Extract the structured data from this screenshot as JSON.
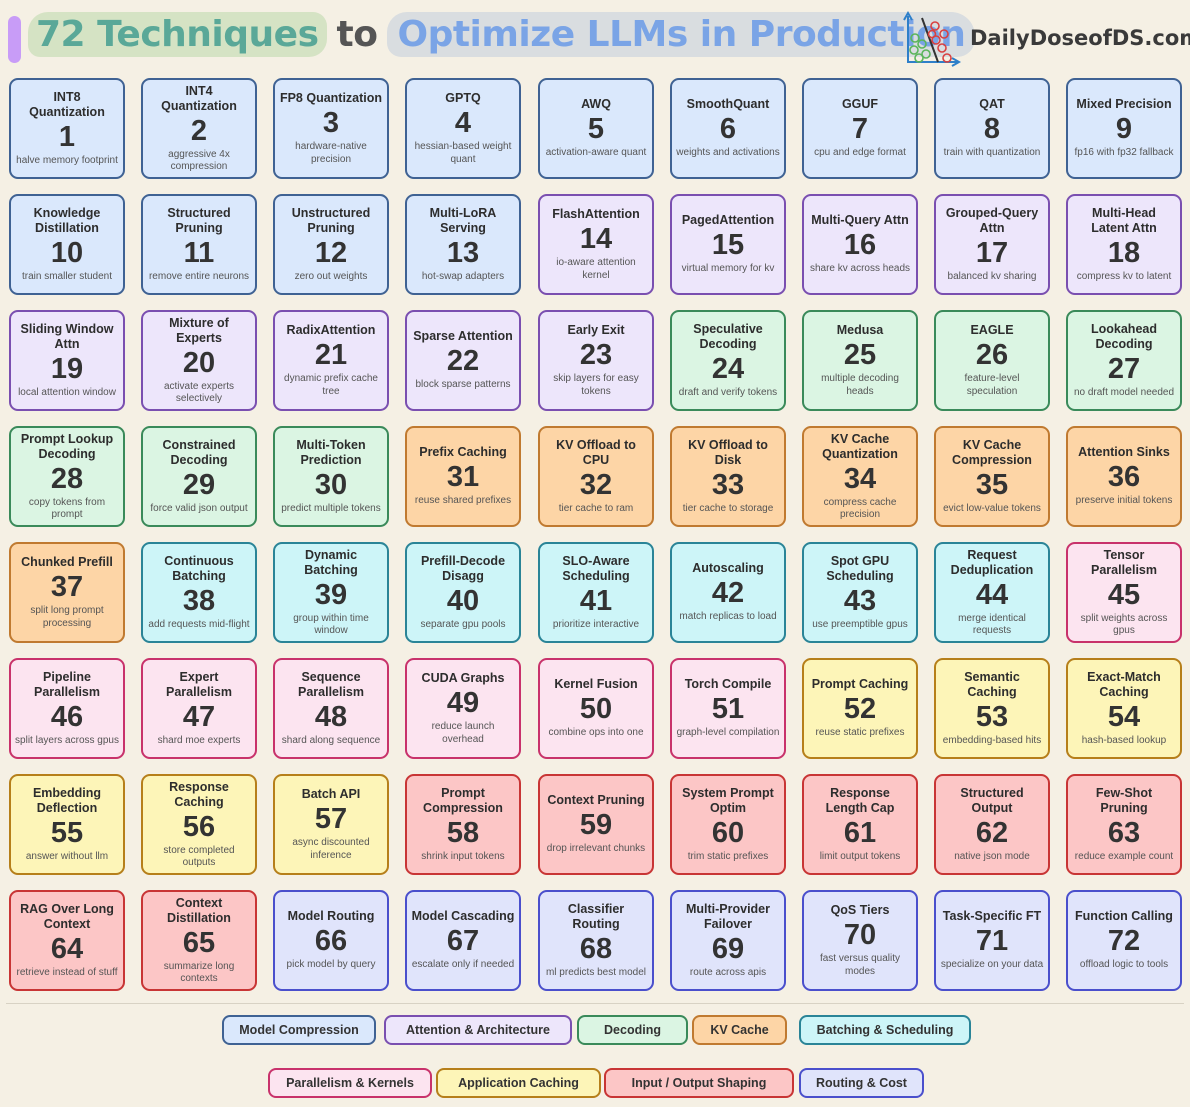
{
  "header": {
    "title_part1": "72 Techniques",
    "title_part2": "to",
    "title_part3": "Optimize LLMs in Production",
    "brand": "DailyDoseofDS.com"
  },
  "categories": {
    "compression": {
      "label": "Model Compression",
      "bg": "#dae8fc",
      "border": "#3f6293"
    },
    "attention": {
      "label": "Attention & Architecture",
      "bg": "#ede6fb",
      "border": "#7a4fb0"
    },
    "decoding": {
      "label": "Decoding",
      "bg": "#dbf5e3",
      "border": "#3a8a5a"
    },
    "kv": {
      "label": "KV Cache",
      "bg": "#fdd5a6",
      "border": "#c07a30"
    },
    "batching": {
      "label": "Batching & Scheduling",
      "bg": "#cdf5f8",
      "border": "#2a8497"
    },
    "parallel": {
      "label": "Parallelism & Kernels",
      "bg": "#fce4f0",
      "border": "#c8326b"
    },
    "appcache": {
      "label": "Application Caching",
      "bg": "#fdf5b8",
      "border": "#b67f1a"
    },
    "io": {
      "label": "Input / Output Shaping",
      "bg": "#fcc6c6",
      "border": "#c83535"
    },
    "routing": {
      "label": "Routing & Cost",
      "bg": "#e0e4fb",
      "border": "#4a4fcc"
    }
  },
  "legend_order": [
    "compression",
    "attention",
    "decoding",
    "kv",
    "batching",
    "parallel",
    "appcache",
    "io",
    "routing"
  ],
  "techniques": [
    {
      "n": "1",
      "title": "INT8 Quantization",
      "desc": "halve memory footprint",
      "cat": "compression"
    },
    {
      "n": "2",
      "title": "INT4 Quantization",
      "desc": "aggressive 4x compression",
      "cat": "compression"
    },
    {
      "n": "3",
      "title": "FP8 Quantization",
      "desc": "hardware-native precision",
      "cat": "compression"
    },
    {
      "n": "4",
      "title": "GPTQ",
      "desc": "hessian-based weight quant",
      "cat": "compression"
    },
    {
      "n": "5",
      "title": "AWQ",
      "desc": "activation-aware quant",
      "cat": "compression"
    },
    {
      "n": "6",
      "title": "SmoothQuant",
      "desc": "weights and activations",
      "cat": "compression"
    },
    {
      "n": "7",
      "title": "GGUF",
      "desc": "cpu and edge format",
      "cat": "compression"
    },
    {
      "n": "8",
      "title": "QAT",
      "desc": "train with quantization",
      "cat": "compression"
    },
    {
      "n": "9",
      "title": "Mixed Precision",
      "desc": "fp16 with fp32 fallback",
      "cat": "compression"
    },
    {
      "n": "10",
      "title": "Knowledge Distillation",
      "desc": "train smaller student",
      "cat": "compression"
    },
    {
      "n": "11",
      "title": "Structured Pruning",
      "desc": "remove entire neurons",
      "cat": "compression"
    },
    {
      "n": "12",
      "title": "Unstructured Pruning",
      "desc": "zero out weights",
      "cat": "compression"
    },
    {
      "n": "13",
      "title": "Multi-LoRA Serving",
      "desc": "hot-swap adapters",
      "cat": "compression"
    },
    {
      "n": "14",
      "title": "FlashAttention",
      "desc": "io-aware attention kernel",
      "cat": "attention"
    },
    {
      "n": "15",
      "title": "PagedAttention",
      "desc": "virtual memory for kv",
      "cat": "attention"
    },
    {
      "n": "16",
      "title": "Multi-Query Attn",
      "desc": "share kv across heads",
      "cat": "attention"
    },
    {
      "n": "17",
      "title": "Grouped-Query Attn",
      "desc": "balanced kv sharing",
      "cat": "attention"
    },
    {
      "n": "18",
      "title": "Multi-Head Latent Attn",
      "desc": "compress kv to latent",
      "cat": "attention"
    },
    {
      "n": "19",
      "title": "Sliding Window Attn",
      "desc": "local attention window",
      "cat": "attention"
    },
    {
      "n": "20",
      "title": "Mixture of Experts",
      "desc": "activate experts selectively",
      "cat": "attention"
    },
    {
      "n": "21",
      "title": "RadixAttention",
      "desc": "dynamic prefix cache tree",
      "cat": "attention"
    },
    {
      "n": "22",
      "title": "Sparse Attention",
      "desc": "block sparse patterns",
      "cat": "attention"
    },
    {
      "n": "23",
      "title": "Early Exit",
      "desc": "skip layers for easy tokens",
      "cat": "attention"
    },
    {
      "n": "24",
      "title": "Speculative Decoding",
      "desc": "draft and verify tokens",
      "cat": "decoding"
    },
    {
      "n": "25",
      "title": "Medusa",
      "desc": "multiple decoding heads",
      "cat": "decoding"
    },
    {
      "n": "26",
      "title": "EAGLE",
      "desc": "feature-level speculation",
      "cat": "decoding"
    },
    {
      "n": "27",
      "title": "Lookahead Decoding",
      "desc": "no draft model needed",
      "cat": "decoding"
    },
    {
      "n": "28",
      "title": "Prompt Lookup Decoding",
      "desc": "copy tokens from prompt",
      "cat": "decoding"
    },
    {
      "n": "29",
      "title": "Constrained Decoding",
      "desc": "force valid json output",
      "cat": "decoding"
    },
    {
      "n": "30",
      "title": "Multi-Token Prediction",
      "desc": "predict multiple tokens",
      "cat": "decoding"
    },
    {
      "n": "31",
      "title": "Prefix Caching",
      "desc": "reuse shared prefixes",
      "cat": "kv"
    },
    {
      "n": "32",
      "title": "KV Offload to CPU",
      "desc": "tier cache to ram",
      "cat": "kv"
    },
    {
      "n": "33",
      "title": "KV Offload to Disk",
      "desc": "tier cache to storage",
      "cat": "kv"
    },
    {
      "n": "34",
      "title": "KV Cache Quantization",
      "desc": "compress cache precision",
      "cat": "kv"
    },
    {
      "n": "35",
      "title": "KV Cache Compression",
      "desc": "evict low-value tokens",
      "cat": "kv"
    },
    {
      "n": "36",
      "title": "Attention Sinks",
      "desc": "preserve initial tokens",
      "cat": "kv"
    },
    {
      "n": "37",
      "title": "Chunked Prefill",
      "desc": "split long prompt processing",
      "cat": "kv"
    },
    {
      "n": "38",
      "title": "Continuous Batching",
      "desc": "add requests mid-flight",
      "cat": "batching"
    },
    {
      "n": "39",
      "title": "Dynamic Batching",
      "desc": "group within time window",
      "cat": "batching"
    },
    {
      "n": "40",
      "title": "Prefill-Decode Disagg",
      "desc": "separate gpu pools",
      "cat": "batching"
    },
    {
      "n": "41",
      "title": "SLO-Aware Scheduling",
      "desc": "prioritize interactive",
      "cat": "batching"
    },
    {
      "n": "42",
      "title": "Autoscaling",
      "desc": "match replicas to load",
      "cat": "batching"
    },
    {
      "n": "43",
      "title": "Spot GPU Scheduling",
      "desc": "use preemptible gpus",
      "cat": "batching"
    },
    {
      "n": "44",
      "title": "Request Deduplication",
      "desc": "merge identical requests",
      "cat": "batching"
    },
    {
      "n": "45",
      "title": "Tensor Parallelism",
      "desc": "split weights across gpus",
      "cat": "parallel"
    },
    {
      "n": "46",
      "title": "Pipeline Parallelism",
      "desc": "split layers across gpus",
      "cat": "parallel"
    },
    {
      "n": "47",
      "title": "Expert Parallelism",
      "desc": "shard moe experts",
      "cat": "parallel"
    },
    {
      "n": "48",
      "title": "Sequence Parallelism",
      "desc": "shard along sequence",
      "cat": "parallel"
    },
    {
      "n": "49",
      "title": "CUDA Graphs",
      "desc": "reduce launch overhead",
      "cat": "parallel"
    },
    {
      "n": "50",
      "title": "Kernel Fusion",
      "desc": "combine ops into one",
      "cat": "parallel"
    },
    {
      "n": "51",
      "title": "Torch Compile",
      "desc": "graph-level compilation",
      "cat": "parallel"
    },
    {
      "n": "52",
      "title": "Prompt Caching",
      "desc": "reuse static prefixes",
      "cat": "appcache"
    },
    {
      "n": "53",
      "title": "Semantic Caching",
      "desc": "embedding-based hits",
      "cat": "appcache"
    },
    {
      "n": "54",
      "title": "Exact-Match Caching",
      "desc": "hash-based lookup",
      "cat": "appcache"
    },
    {
      "n": "55",
      "title": "Embedding Deflection",
      "desc": "answer without llm",
      "cat": "appcache"
    },
    {
      "n": "56",
      "title": "Response Caching",
      "desc": "store completed outputs",
      "cat": "appcache"
    },
    {
      "n": "57",
      "title": "Batch API",
      "desc": "async discounted inference",
      "cat": "appcache"
    },
    {
      "n": "58",
      "title": "Prompt Compression",
      "desc": "shrink input tokens",
      "cat": "io"
    },
    {
      "n": "59",
      "title": "Context Pruning",
      "desc": "drop irrelevant chunks",
      "cat": "io"
    },
    {
      "n": "60",
      "title": "System Prompt Optim",
      "desc": "trim static prefixes",
      "cat": "io"
    },
    {
      "n": "61",
      "title": "Response Length Cap",
      "desc": "limit output tokens",
      "cat": "io"
    },
    {
      "n": "62",
      "title": "Structured Output",
      "desc": "native json mode",
      "cat": "io"
    },
    {
      "n": "63",
      "title": "Few-Shot Pruning",
      "desc": "reduce example count",
      "cat": "io"
    },
    {
      "n": "64",
      "title": "RAG Over Long Context",
      "desc": "retrieve instead of stuff",
      "cat": "io"
    },
    {
      "n": "65",
      "title": "Context Distillation",
      "desc": "summarize long contexts",
      "cat": "io"
    },
    {
      "n": "66",
      "title": "Model Routing",
      "desc": "pick model by query",
      "cat": "routing"
    },
    {
      "n": "67",
      "title": "Model Cascading",
      "desc": "escalate only if needed",
      "cat": "routing"
    },
    {
      "n": "68",
      "title": "Classifier Routing",
      "desc": "ml predicts best model",
      "cat": "routing"
    },
    {
      "n": "69",
      "title": "Multi-Provider Failover",
      "desc": "route across apis",
      "cat": "routing"
    },
    {
      "n": "70",
      "title": "QoS Tiers",
      "desc": "fast versus quality modes",
      "cat": "routing"
    },
    {
      "n": "71",
      "title": "Task-Specific FT",
      "desc": "specialize on your data",
      "cat": "routing"
    },
    {
      "n": "72",
      "title": "Function Calling",
      "desc": "offload logic to tools",
      "cat": "routing"
    }
  ]
}
